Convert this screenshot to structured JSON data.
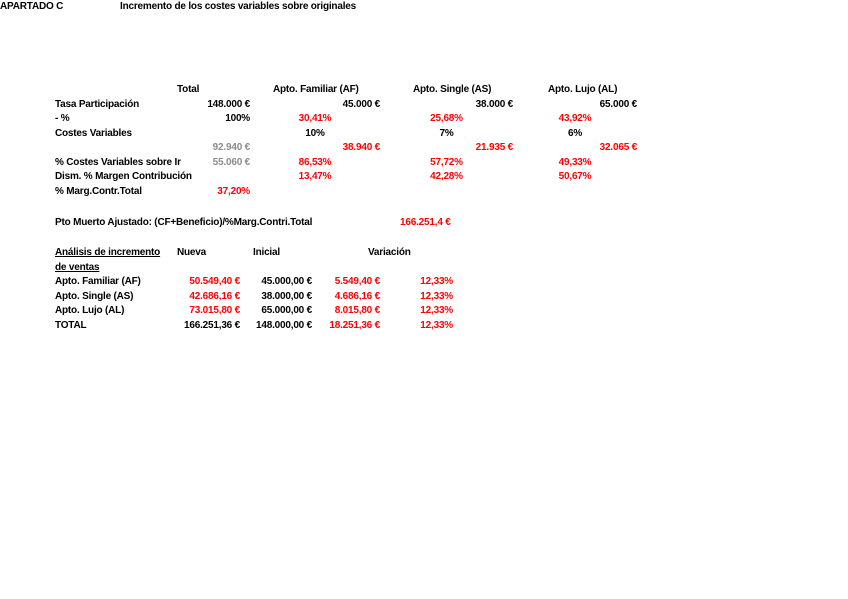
{
  "colors": {
    "red": "#FF0000",
    "gray": "#8C8C8C",
    "text": "#000000",
    "background": "#FFFFFF"
  },
  "header": {
    "section_label": "APARTADO C",
    "section_title": "Incremento de los costes variables sobre originales"
  },
  "table1": {
    "headers": {
      "total": "Total",
      "af": "Apto. Familiar (AF)",
      "as": "Apto. Single (AS)",
      "al": "Apto. Lujo (AL)"
    },
    "rows": [
      {
        "label": "Tasa Participación",
        "total": "148.000 €",
        "af": "45.000 €",
        "as": "38.000 €",
        "al": "65.000 €"
      },
      {
        "label": "- %",
        "total": "100%",
        "af": "30,41%",
        "as": "25,68%",
        "al": "43,92%"
      },
      {
        "label": "Costes Variables",
        "total": "",
        "af": "10%",
        "as": "7%",
        "al": "6%"
      },
      {
        "label": "",
        "total": "92.940 €",
        "af": "38.940 €",
        "as": "21.935 €",
        "al": "32.065 €"
      },
      {
        "label": "% Costes Variables sobre Ir",
        "total": "55.060 €",
        "af": "86,53%",
        "as": "57,72%",
        "al": "49,33%"
      },
      {
        "label": "Dism. % Margen Contribución",
        "total": "",
        "af": "13,47%",
        "as": "42,28%",
        "al": "50,67%"
      },
      {
        "label": "% Marg.Contr.Total",
        "total": "37,20%",
        "af": "",
        "as": "",
        "al": ""
      }
    ]
  },
  "breakeven": {
    "label": "Pto Muerto Ajustado: (CF+Beneficio)/%Marg.Contri.Total",
    "value": "166.251,4 €"
  },
  "table2": {
    "title_line1": "Análisis de incremento",
    "title_line2": "de ventas",
    "headers": {
      "nueva": "Nueva",
      "inicial": "Inicial",
      "variacion": "Variación"
    },
    "rows": [
      {
        "label": "Apto. Familiar (AF)",
        "nueva": "50.549,40 €",
        "inicial": "45.000,00 €",
        "variacion_eur": "5.549,40 €",
        "variacion_pct": "12,33%"
      },
      {
        "label": "Apto. Single (AS)",
        "nueva": "42.686,16 €",
        "inicial": "38.000,00 €",
        "variacion_eur": "4.686,16 €",
        "variacion_pct": "12,33%"
      },
      {
        "label": "Apto. Lujo (AL)",
        "nueva": "73.015,80 €",
        "inicial": "65.000,00 €",
        "variacion_eur": "8.015,80 €",
        "variacion_pct": "12,33%"
      },
      {
        "label": "TOTAL",
        "nueva": "166.251,36 €",
        "inicial": "148.000,00 €",
        "variacion_eur": "18.251,36 €",
        "variacion_pct": "12,33%"
      }
    ]
  }
}
